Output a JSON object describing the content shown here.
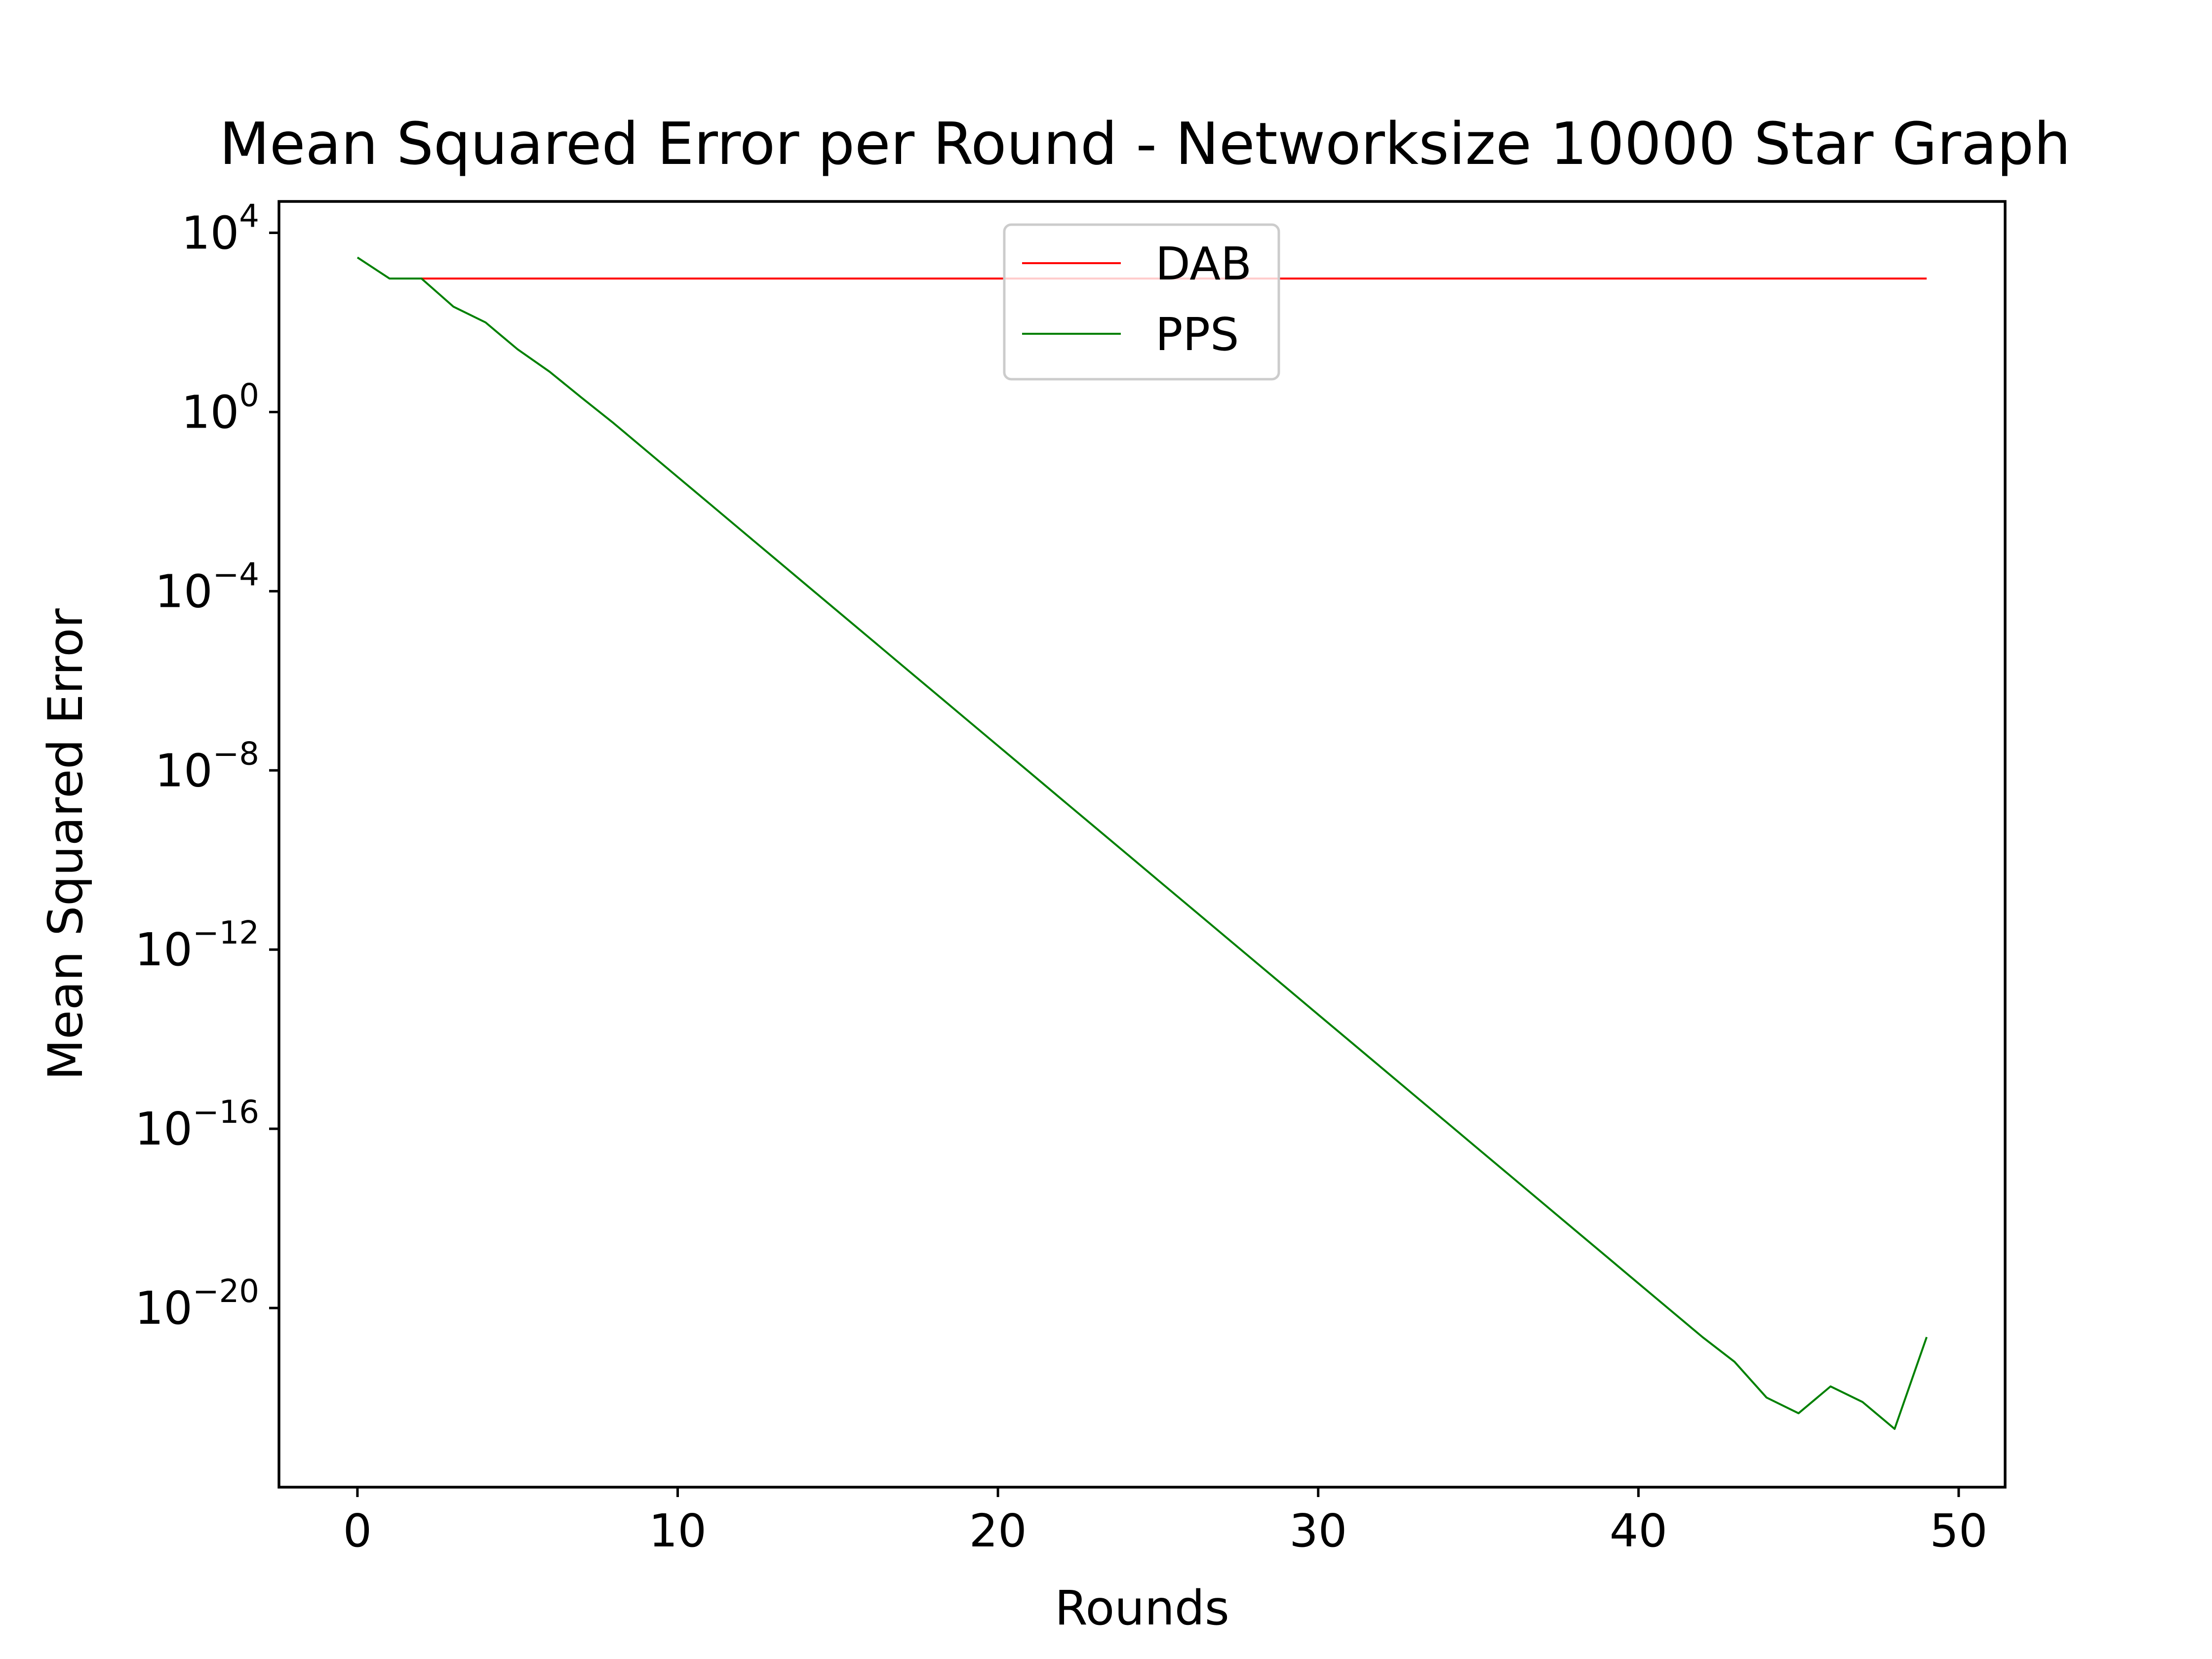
{
  "chart_data": {
    "type": "line",
    "title": "Mean Squared Error per Round - Networksize 10000 Star Graph",
    "xlabel": "Rounds",
    "ylabel": "Mean Squared Error",
    "xlim": [
      -2.45,
      51.45
    ],
    "ylim_log10": [
      -24,
      4.7
    ],
    "yscale": "log",
    "grid": false,
    "legend_position": "upper-center",
    "x_ticks": [
      0,
      10,
      20,
      30,
      40,
      50
    ],
    "y_ticks": [
      {
        "base": "10",
        "exp": "4",
        "log10": 4
      },
      {
        "base": "10",
        "exp": "0",
        "log10": 0
      },
      {
        "base": "10",
        "exp": "−4",
        "log10": -4
      },
      {
        "base": "10",
        "exp": "−8",
        "log10": -8
      },
      {
        "base": "10",
        "exp": "−12",
        "log10": -12
      },
      {
        "base": "10",
        "exp": "−16",
        "log10": -16
      },
      {
        "base": "10",
        "exp": "−20",
        "log10": -20
      }
    ],
    "series": [
      {
        "name": "DAB",
        "color": "#ff0000",
        "x": [
          2,
          3,
          4,
          5,
          6,
          7,
          8,
          9,
          10,
          11,
          12,
          13,
          14,
          15,
          16,
          17,
          18,
          19,
          20,
          21,
          22,
          23,
          24,
          25,
          26,
          27,
          28,
          29,
          30,
          31,
          32,
          33,
          34,
          35,
          36,
          37,
          38,
          39,
          40,
          41,
          42,
          43,
          44,
          45,
          46,
          47,
          48,
          49
        ],
        "log10_values": [
          2.98,
          2.98,
          2.98,
          2.98,
          2.98,
          2.98,
          2.98,
          2.98,
          2.98,
          2.98,
          2.98,
          2.98,
          2.98,
          2.98,
          2.98,
          2.98,
          2.98,
          2.98,
          2.98,
          2.98,
          2.98,
          2.98,
          2.98,
          2.98,
          2.98,
          2.98,
          2.98,
          2.98,
          2.98,
          2.98,
          2.98,
          2.98,
          2.98,
          2.98,
          2.98,
          2.98,
          2.98,
          2.98,
          2.98,
          2.98,
          2.98,
          2.98,
          2.98,
          2.98,
          2.98,
          2.98,
          2.98,
          2.98
        ]
      },
      {
        "name": "PPS",
        "color": "#008000",
        "x": [
          0,
          1,
          2,
          3,
          4,
          5,
          6,
          7,
          8,
          9,
          10,
          11,
          12,
          13,
          14,
          15,
          16,
          17,
          18,
          19,
          20,
          21,
          22,
          23,
          24,
          25,
          26,
          27,
          28,
          29,
          30,
          31,
          32,
          33,
          34,
          35,
          36,
          37,
          38,
          39,
          40,
          41,
          42,
          43,
          44,
          45,
          46,
          47,
          48,
          49
        ],
        "log10_values": [
          3.45,
          2.98,
          2.98,
          2.35,
          2.0,
          1.4,
          0.9,
          0.32,
          -0.25,
          -0.85,
          -1.45,
          -2.05,
          -2.65,
          -3.25,
          -3.85,
          -4.45,
          -5.05,
          -5.65,
          -6.25,
          -6.85,
          -7.45,
          -8.05,
          -8.65,
          -9.25,
          -9.85,
          -10.45,
          -11.05,
          -11.65,
          -12.25,
          -12.85,
          -13.45,
          -14.05,
          -14.65,
          -15.25,
          -15.85,
          -16.45,
          -17.05,
          -17.65,
          -18.25,
          -18.85,
          -19.45,
          -20.05,
          -20.65,
          -21.2,
          -22.0,
          -22.35,
          -21.75,
          -22.1,
          -22.7,
          -20.65
        ]
      }
    ]
  }
}
